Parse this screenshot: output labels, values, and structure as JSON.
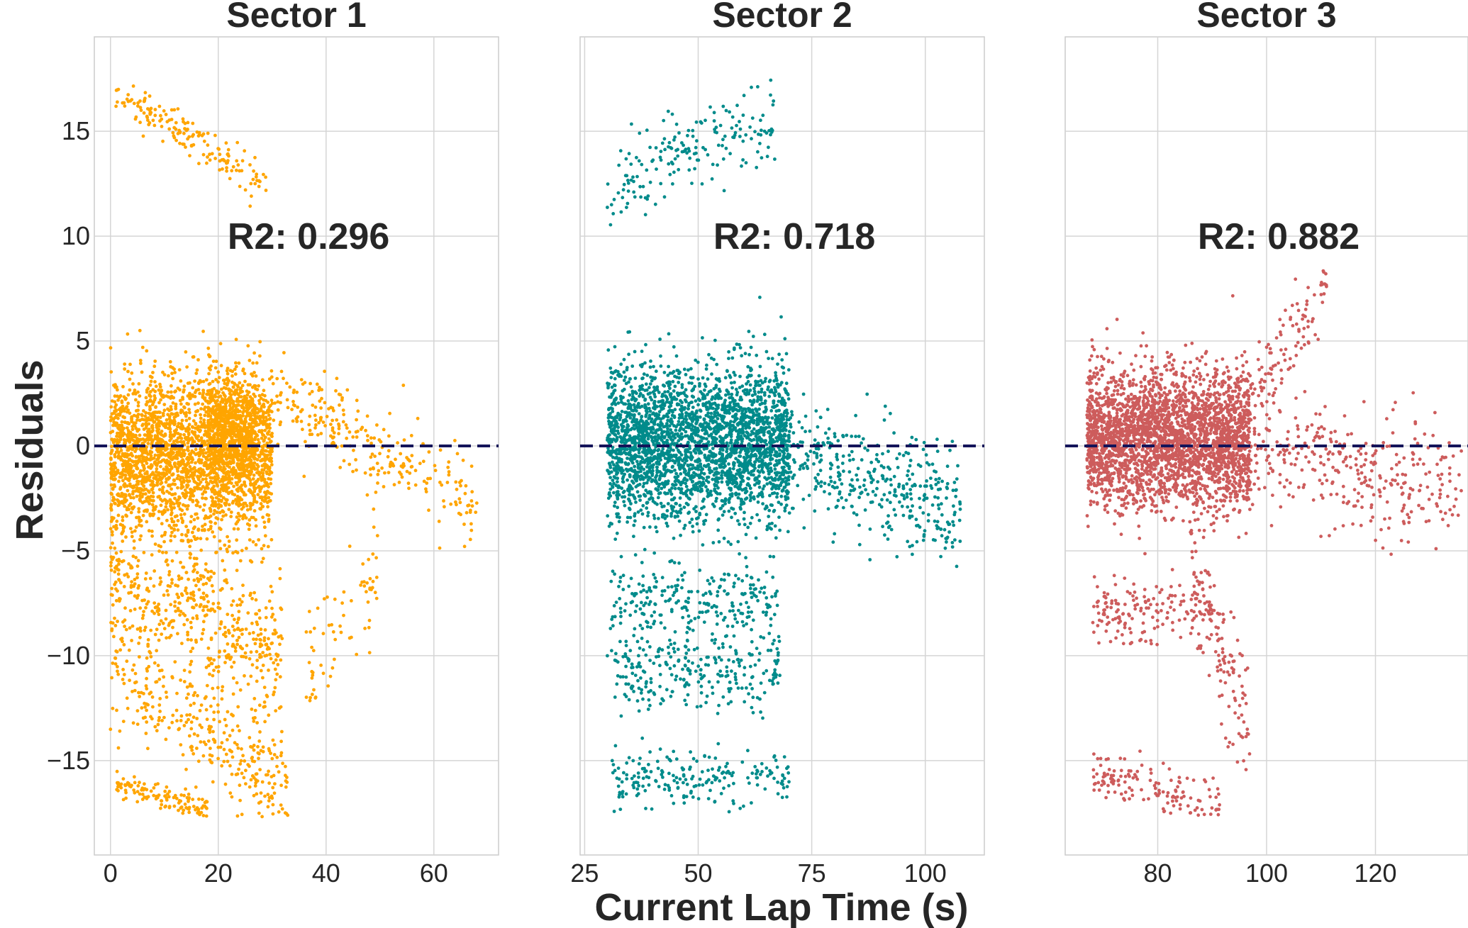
{
  "figure": {
    "ylabel": "Residuals",
    "xlabel": "Current Lap Time (s)",
    "shared_y_ticks": [
      "15",
      "10",
      "5",
      "0",
      "−5",
      "−10",
      "−15"
    ]
  },
  "chart_data": [
    {
      "type": "scatter",
      "title": "Sector 1",
      "annotation": "R2: 0.296",
      "color": "#FFA500",
      "xlim": [
        -3,
        72
      ],
      "ylim": [
        -19.5,
        19.5
      ],
      "x_ticks": [
        0,
        20,
        40,
        60
      ],
      "x_tick_labels": [
        "0",
        "20",
        "40",
        "60"
      ],
      "y_ticks": [
        15,
        10,
        5,
        0,
        -5,
        -10,
        -15
      ],
      "grid": true,
      "reference_line": 0,
      "point_clusters": [
        {
          "x_range": [
            0,
            30
          ],
          "y_mean": -0.5,
          "y_std": 1.9,
          "count": 2600
        },
        {
          "x_range": [
            18,
            27
          ],
          "y_mean": 0.8,
          "y_std": 1.2,
          "count": 600
        },
        {
          "x_range": [
            1,
            29
          ],
          "y_trend": [
            16.8,
            12.5
          ],
          "y_std": 0.5,
          "count": 160
        },
        {
          "x_range": [
            30,
            68
          ],
          "y_trend": [
            2.5,
            -2.8
          ],
          "y_std": 1.0,
          "count": 260
        },
        {
          "x_range": [
            0,
            32
          ],
          "y_trend": [
            -6,
            -10
          ],
          "y_std": 1.8,
          "count": 520
        },
        {
          "x_range": [
            0,
            33
          ],
          "y_trend": [
            -10.5,
            -16.5
          ],
          "y_std": 1.2,
          "count": 320
        },
        {
          "x_range": [
            1,
            18
          ],
          "y_trend": [
            -16,
            -17.5
          ],
          "y_std": 0.3,
          "count": 120
        },
        {
          "x_range": [
            36,
            50
          ],
          "y_trend": [
            -11,
            -6
          ],
          "y_std": 1.4,
          "count": 70
        }
      ]
    },
    {
      "type": "scatter",
      "title": "Sector 2",
      "annotation": "R2: 0.718",
      "color": "#008B8B",
      "xlim": [
        24,
        113
      ],
      "ylim": [
        -19.5,
        19.5
      ],
      "x_ticks": [
        25,
        50,
        75,
        100
      ],
      "x_tick_labels": [
        "25",
        "50",
        "75",
        "100"
      ],
      "y_ticks": [
        15,
        10,
        5,
        0,
        -5,
        -10,
        -15
      ],
      "grid": true,
      "reference_line": 0,
      "point_clusters": [
        {
          "x_range": [
            30,
            70
          ],
          "y_mean": 0.2,
          "y_std": 1.8,
          "count": 2800
        },
        {
          "x_range": [
            68,
            108
          ],
          "y_trend": [
            0,
            -3.5
          ],
          "y_std": 1.3,
          "count": 400
        },
        {
          "x_range": [
            30,
            68
          ],
          "y_mean": -7.5,
          "y_std": 1.0,
          "count": 260
        },
        {
          "x_range": [
            31,
            68
          ],
          "y_mean": -10.8,
          "y_std": 0.9,
          "count": 260
        },
        {
          "x_range": [
            31,
            70
          ],
          "y_mean": -15.8,
          "y_std": 0.7,
          "count": 200
        },
        {
          "x_range": [
            30,
            67
          ],
          "y_trend": [
            12.5,
            15.5
          ],
          "y_std": 1.0,
          "count": 180
        }
      ]
    },
    {
      "type": "scatter",
      "title": "Sector 3",
      "annotation": "R2: 0.882",
      "color": "#CD5C5C",
      "xlim": [
        63,
        137
      ],
      "ylim": [
        -19.5,
        19.5
      ],
      "x_ticks": [
        80,
        100,
        120
      ],
      "x_tick_labels": [
        "80",
        "100",
        "120"
      ],
      "y_ticks": [
        15,
        10,
        5,
        0,
        -5,
        -10,
        -15
      ],
      "grid": true,
      "reference_line": 0,
      "point_clusters": [
        {
          "x_range": [
            67,
            97
          ],
          "y_mean": 0.3,
          "y_std": 1.6,
          "count": 3000
        },
        {
          "x_range": [
            95,
            136
          ],
          "y_trend": [
            0,
            -2
          ],
          "y_std": 1.4,
          "count": 340
        },
        {
          "x_range": [
            97,
            111
          ],
          "y_trend": [
            2,
            7.5
          ],
          "y_std": 1.0,
          "count": 110
        },
        {
          "x_range": [
            68,
            90
          ],
          "y_mean": -7.8,
          "y_std": 0.8,
          "count": 170
        },
        {
          "x_range": [
            68,
            92
          ],
          "y_trend": [
            -15.5,
            -17.5
          ],
          "y_std": 0.6,
          "count": 140
        },
        {
          "x_range": [
            86,
            97
          ],
          "y_trend": [
            -5,
            -14
          ],
          "y_std": 1.5,
          "count": 120
        }
      ]
    }
  ]
}
